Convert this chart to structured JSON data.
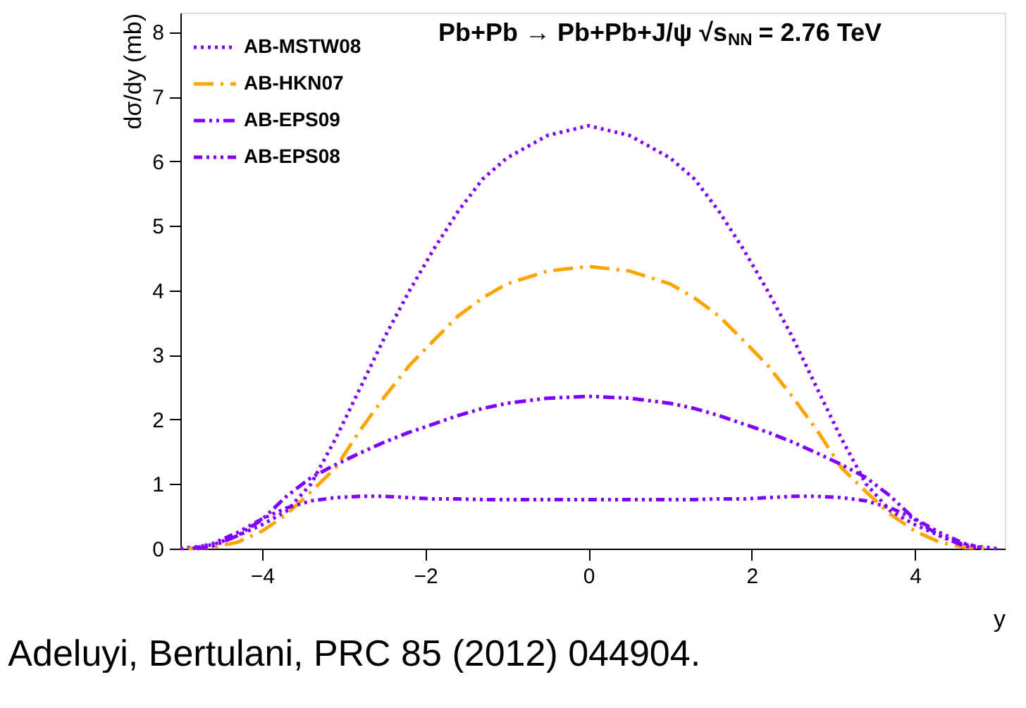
{
  "chart_data": {
    "type": "line",
    "title": "Pb+Pb → Pb+Pb+J/ψ √s$_{NN}$ = 2.76 TeV",
    "xlabel": "y",
    "ylabel": "dσ/dy (mb)",
    "x": [
      -5,
      -4.6,
      -4.3,
      -4.0,
      -3.7,
      -3.4,
      -3.1,
      -2.8,
      -2.5,
      -2.2,
      -1.9,
      -1.6,
      -1.3,
      -1.0,
      -0.5,
      0,
      0.5,
      1.0,
      1.3,
      1.6,
      1.9,
      2.2,
      2.5,
      2.8,
      3.1,
      3.4,
      3.7,
      4.0,
      4.3,
      4.6,
      5
    ],
    "series": [
      {
        "name": "AB-MSTW08",
        "color": "#8000ff",
        "line_style": "dotted",
        "values": [
          0,
          0.06,
          0.2,
          0.37,
          0.58,
          1.0,
          1.7,
          2.48,
          3.27,
          3.98,
          4.63,
          5.22,
          5.72,
          6.05,
          6.4,
          6.55,
          6.4,
          6.05,
          5.72,
          5.22,
          4.63,
          3.98,
          3.27,
          2.48,
          1.7,
          1.0,
          0.58,
          0.37,
          0.2,
          0.06,
          0
        ]
      },
      {
        "name": "AB-HKN07",
        "color": "#ffa500",
        "line_style": "dashed",
        "x": [
          -4.9,
          -4.6,
          -4.3,
          -4.0,
          -3.7,
          -3.4,
          -3.1,
          -2.8,
          -2.5,
          -2.2,
          -1.9,
          -1.6,
          -1.3,
          -1.0,
          -0.5,
          0,
          0.5,
          1.0,
          1.3,
          1.6,
          1.9,
          2.2,
          2.5,
          2.8,
          3.1,
          3.4,
          3.7,
          4.0,
          4.3,
          4.6,
          4.9
        ],
        "values": [
          0,
          0.02,
          0.1,
          0.27,
          0.53,
          0.88,
          1.25,
          1.83,
          2.35,
          2.83,
          3.22,
          3.6,
          3.88,
          4.1,
          4.3,
          4.37,
          4.3,
          4.1,
          3.88,
          3.6,
          3.22,
          2.83,
          2.35,
          1.83,
          1.25,
          0.88,
          0.53,
          0.27,
          0.1,
          0.02,
          0
        ]
      },
      {
        "name": "AB-EPS09",
        "color": "#8000ff",
        "line_style": "dashed",
        "x": [
          -4.8,
          -4.6,
          -4.3,
          -4.0,
          -3.7,
          -3.4,
          -3.1,
          -2.8,
          -2.5,
          -2.2,
          -1.9,
          -1.6,
          -1.3,
          -1.0,
          -0.5,
          0,
          0.5,
          1.0,
          1.3,
          1.6,
          1.9,
          2.2,
          2.5,
          2.8,
          3.1,
          3.4,
          3.7,
          4.0,
          4.3,
          4.6,
          4.8
        ],
        "values": [
          0,
          0.04,
          0.2,
          0.45,
          0.81,
          1.1,
          1.3,
          1.48,
          1.65,
          1.8,
          1.93,
          2.06,
          2.17,
          2.25,
          2.33,
          2.36,
          2.33,
          2.25,
          2.17,
          2.06,
          1.93,
          1.8,
          1.65,
          1.48,
          1.3,
          1.1,
          0.81,
          0.45,
          0.2,
          0.04,
          0
        ]
      },
      {
        "name": "AB-EPS08",
        "color": "#8000ff",
        "line_style": "dashed",
        "x": [
          -4.85,
          -4.6,
          -4.3,
          -4.0,
          -3.7,
          -3.4,
          -3.1,
          -2.8,
          -2.5,
          -2.2,
          -1.9,
          -1.6,
          -1.3,
          -1.0,
          -0.5,
          0,
          0.5,
          1.0,
          1.3,
          1.6,
          1.9,
          2.2,
          2.5,
          2.8,
          3.1,
          3.4,
          3.7,
          4.0,
          4.3,
          4.6,
          4.85
        ],
        "values": [
          0,
          0.08,
          0.25,
          0.46,
          0.63,
          0.74,
          0.79,
          0.81,
          0.81,
          0.79,
          0.77,
          0.77,
          0.76,
          0.76,
          0.76,
          0.76,
          0.76,
          0.76,
          0.76,
          0.77,
          0.77,
          0.79,
          0.81,
          0.81,
          0.79,
          0.74,
          0.63,
          0.46,
          0.25,
          0.08,
          0
        ]
      }
    ],
    "xlim": [
      -5,
      5.1
    ],
    "ylim": [
      0,
      8.3
    ],
    "xticks": [
      -4,
      -2,
      0,
      2,
      4
    ],
    "yticks": [
      0,
      1,
      2,
      3,
      4,
      5,
      6,
      7,
      8
    ],
    "grid": false,
    "legend": "top left",
    "marker": "none",
    "annotations": [
      "Adeluyi, Bertulani, PRC 85 (2012) 044904."
    ]
  }
}
